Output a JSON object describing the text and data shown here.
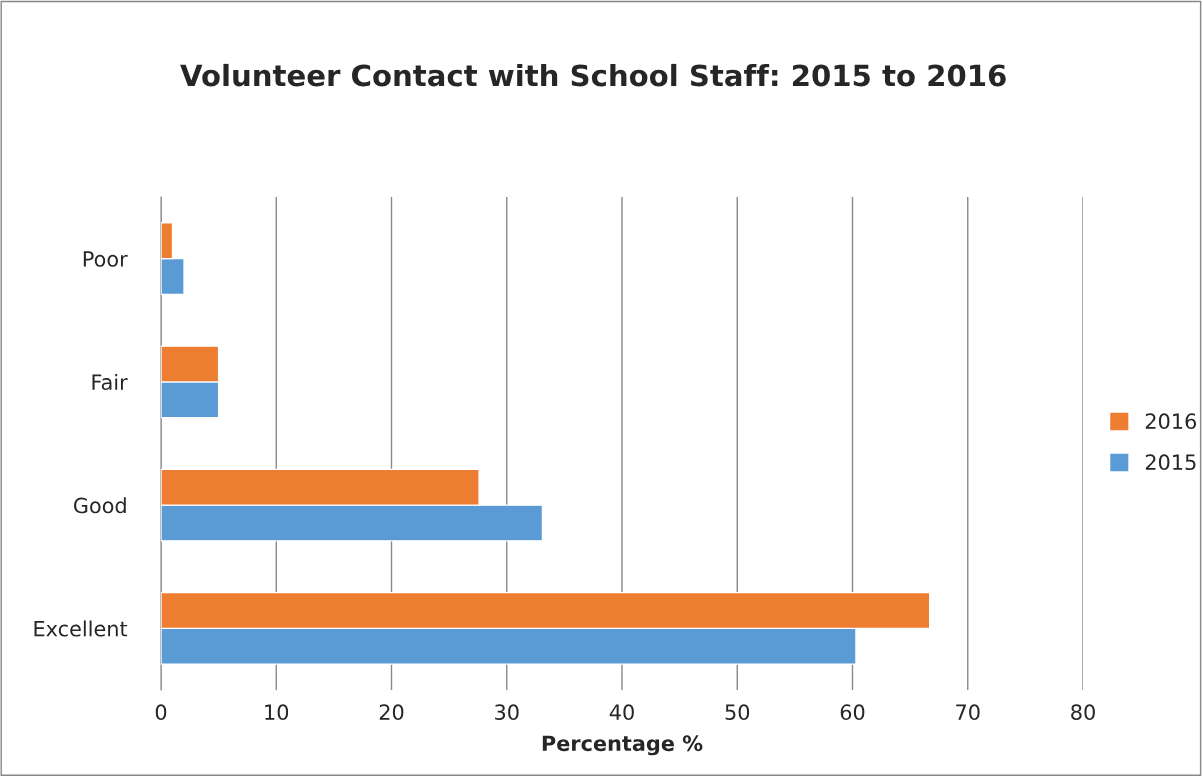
{
  "chart_data": {
    "type": "bar",
    "orientation": "horizontal",
    "title": "Volunteer Contact with School Staff: 2015 to 2016",
    "xlabel": "Percentage %",
    "categories": [
      "Poor",
      "Fair",
      "Good",
      "Excellent"
    ],
    "series": [
      {
        "name": "2015",
        "color": "#5b9bd5",
        "values": [
          2,
          5,
          33.1,
          60.3
        ]
      },
      {
        "name": "2016",
        "color": "#ed7d31",
        "values": [
          1,
          5,
          27.6,
          66.7
        ]
      }
    ],
    "xlim": [
      0,
      80
    ],
    "xticks": [
      0,
      10,
      20,
      30,
      40,
      50,
      60,
      70,
      80
    ],
    "grid": "x",
    "legend": "right"
  }
}
